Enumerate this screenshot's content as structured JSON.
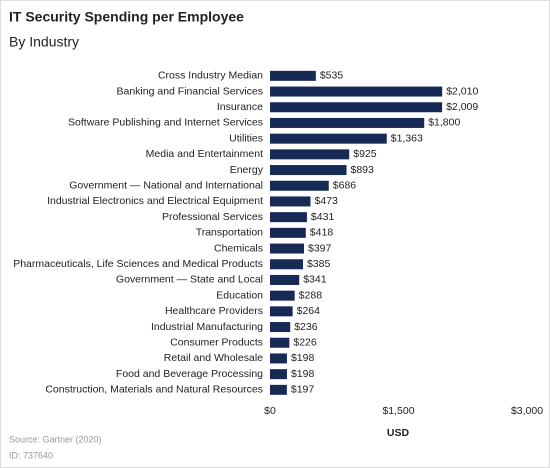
{
  "chart_data": {
    "type": "bar",
    "orientation": "horizontal",
    "title": "IT Security Spending per Employee",
    "subtitle": "By Industry",
    "categories": [
      "Cross Industry Median",
      "Banking and Financial Services",
      "Insurance",
      "Software Publishing and Internet Services",
      "Utilities",
      "Media and Entertainment",
      "Energy",
      "Government — National and International",
      "Industrial Electronics and Electrical Equipment",
      "Professional Services",
      "Transportation",
      "Chemicals",
      "Pharmaceuticals, Life Sciences and Medical Products",
      "Government — State and Local",
      "Education",
      "Healthcare Providers",
      "Industrial Manufacturing",
      "Consumer Products",
      "Retail and Wholesale",
      "Food and Beverage Processing",
      "Construction, Materials and Natural Resources"
    ],
    "values": [
      535,
      2010,
      2009,
      1800,
      1363,
      925,
      893,
      686,
      473,
      431,
      418,
      397,
      385,
      341,
      288,
      264,
      236,
      226,
      198,
      198,
      197
    ],
    "value_labels": [
      "$535",
      "$2,010",
      "$2,009",
      "$1,800",
      "$1,363",
      "$925",
      "$893",
      "$686",
      "$473",
      "$431",
      "$418",
      "$397",
      "$385",
      "$341",
      "$288",
      "$264",
      "$236",
      "$226",
      "$198",
      "$198",
      "$197"
    ],
    "color": "#172a55",
    "xlim": [
      0,
      3000
    ],
    "xticks": [
      {
        "value": 0,
        "label": "$0"
      },
      {
        "value": 1500,
        "label": "$1,500"
      },
      {
        "value": 3000,
        "label": "$3,000"
      }
    ],
    "xlabel": "USD",
    "grid": false,
    "source": "Source: Gartner (2020)",
    "id": "ID: 737640"
  }
}
